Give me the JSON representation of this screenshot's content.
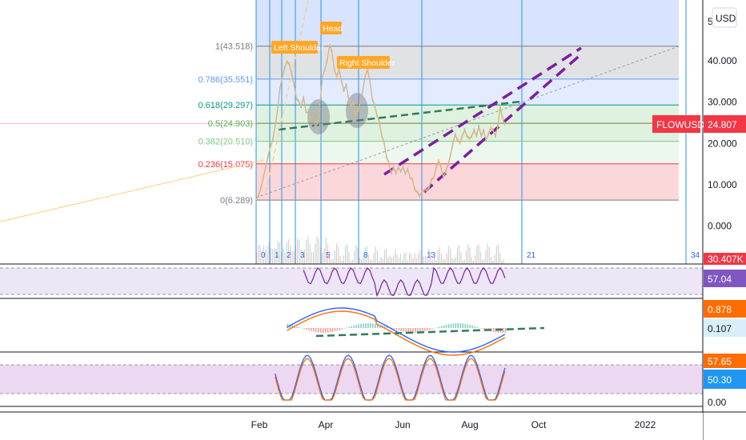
{
  "chart_data": {
    "type": "line",
    "symbol": "FLOWUSD",
    "currency": "USD",
    "last_price": "24.807",
    "volume_label": "30.407K",
    "price_axis": {
      "ticks": [
        "40.000",
        "30.000",
        "20.000",
        "10.000",
        "0.000"
      ],
      "ylim": [
        -5,
        50
      ],
      "partial_top_tick": "5"
    },
    "time_axis": {
      "labels": [
        "Feb",
        "Apr",
        "Jun",
        "Aug",
        "Oct",
        "2022"
      ]
    },
    "fib_levels": [
      {
        "label": "1(43.518)",
        "value": 43.518,
        "color": "#787b86"
      },
      {
        "label": "0.786(35.551)",
        "value": 35.551,
        "color": "#5b9cf6"
      },
      {
        "label": "0.618(29.297)",
        "value": 29.297,
        "color": "#089981"
      },
      {
        "label": "0.5(24.903)",
        "value": 24.903,
        "color": "#4caf50"
      },
      {
        "label": "0.382(20.510)",
        "value": 20.51,
        "color": "#81c784"
      },
      {
        "label": "0.236(15.075)",
        "value": 15.075,
        "color": "#f23645"
      },
      {
        "label": "0(6.289)",
        "value": 6.289,
        "color": "#787b86"
      }
    ],
    "fib_time_zone_labels": [
      "0",
      "1",
      "2",
      "3",
      "5",
      "8",
      "13",
      "21",
      "34"
    ],
    "annotations": [
      "Left Shoulder",
      "Head",
      "Right Shoulder"
    ],
    "price_series": [
      {
        "d": 0,
        "v": 6.3
      },
      {
        "d": 2,
        "v": 7.5
      },
      {
        "d": 4,
        "v": 9
      },
      {
        "d": 6,
        "v": 12
      },
      {
        "d": 8,
        "v": 14
      },
      {
        "d": 10,
        "v": 17
      },
      {
        "d": 12,
        "v": 19
      },
      {
        "d": 14,
        "v": 21
      },
      {
        "d": 16,
        "v": 24
      },
      {
        "d": 18,
        "v": 28
      },
      {
        "d": 20,
        "v": 33
      },
      {
        "d": 22,
        "v": 36
      },
      {
        "d": 24,
        "v": 38
      },
      {
        "d": 26,
        "v": 40
      },
      {
        "d": 28,
        "v": 39
      },
      {
        "d": 30,
        "v": 37
      },
      {
        "d": 32,
        "v": 34
      },
      {
        "d": 34,
        "v": 31
      },
      {
        "d": 36,
        "v": 30
      },
      {
        "d": 38,
        "v": 29
      },
      {
        "d": 40,
        "v": 31
      },
      {
        "d": 42,
        "v": 28
      },
      {
        "d": 44,
        "v": 27
      },
      {
        "d": 46,
        "v": 26
      },
      {
        "d": 48,
        "v": 27
      },
      {
        "d": 50,
        "v": 24
      },
      {
        "d": 52,
        "v": 25
      },
      {
        "d": 54,
        "v": 30
      },
      {
        "d": 56,
        "v": 36
      },
      {
        "d": 58,
        "v": 38
      },
      {
        "d": 60,
        "v": 40
      },
      {
        "d": 62,
        "v": 44
      },
      {
        "d": 64,
        "v": 42
      },
      {
        "d": 66,
        "v": 38
      },
      {
        "d": 68,
        "v": 36
      },
      {
        "d": 70,
        "v": 38
      },
      {
        "d": 72,
        "v": 35
      },
      {
        "d": 74,
        "v": 33
      },
      {
        "d": 76,
        "v": 34
      },
      {
        "d": 78,
        "v": 31
      },
      {
        "d": 80,
        "v": 29
      },
      {
        "d": 82,
        "v": 30
      },
      {
        "d": 84,
        "v": 27
      },
      {
        "d": 86,
        "v": 28
      },
      {
        "d": 88,
        "v": 30
      },
      {
        "d": 90,
        "v": 33
      },
      {
        "d": 92,
        "v": 36
      },
      {
        "d": 94,
        "v": 38
      },
      {
        "d": 96,
        "v": 35
      },
      {
        "d": 98,
        "v": 31
      },
      {
        "d": 100,
        "v": 29
      },
      {
        "d": 102,
        "v": 27
      },
      {
        "d": 104,
        "v": 25
      },
      {
        "d": 106,
        "v": 22
      },
      {
        "d": 108,
        "v": 20
      },
      {
        "d": 110,
        "v": 17
      },
      {
        "d": 112,
        "v": 15
      },
      {
        "d": 114,
        "v": 13
      },
      {
        "d": 116,
        "v": 14
      },
      {
        "d": 118,
        "v": 13
      },
      {
        "d": 120,
        "v": 14
      },
      {
        "d": 122,
        "v": 13.5
      },
      {
        "d": 124,
        "v": 14
      },
      {
        "d": 126,
        "v": 13
      },
      {
        "d": 128,
        "v": 13.5
      },
      {
        "d": 130,
        "v": 12
      },
      {
        "d": 132,
        "v": 11
      },
      {
        "d": 134,
        "v": 9
      },
      {
        "d": 136,
        "v": 8
      },
      {
        "d": 138,
        "v": 7.5
      },
      {
        "d": 140,
        "v": 8
      },
      {
        "d": 142,
        "v": 9
      },
      {
        "d": 144,
        "v": 8.5
      },
      {
        "d": 146,
        "v": 9.5
      },
      {
        "d": 148,
        "v": 11
      },
      {
        "d": 150,
        "v": 12
      },
      {
        "d": 152,
        "v": 14
      },
      {
        "d": 154,
        "v": 16
      },
      {
        "d": 156,
        "v": 14
      },
      {
        "d": 158,
        "v": 12
      },
      {
        "d": 160,
        "v": 13
      },
      {
        "d": 162,
        "v": 15
      },
      {
        "d": 164,
        "v": 17
      },
      {
        "d": 166,
        "v": 20
      },
      {
        "d": 168,
        "v": 22
      },
      {
        "d": 170,
        "v": 21
      },
      {
        "d": 172,
        "v": 20
      },
      {
        "d": 174,
        "v": 22
      },
      {
        "d": 176,
        "v": 23
      },
      {
        "d": 178,
        "v": 22
      },
      {
        "d": 180,
        "v": 21
      },
      {
        "d": 182,
        "v": 22
      },
      {
        "d": 184,
        "v": 23
      },
      {
        "d": 186,
        "v": 22
      },
      {
        "d": 188,
        "v": 24
      },
      {
        "d": 190,
        "v": 22
      },
      {
        "d": 192,
        "v": 23
      },
      {
        "d": 194,
        "v": 21
      },
      {
        "d": 196,
        "v": 22
      },
      {
        "d": 198,
        "v": 24
      },
      {
        "d": 200,
        "v": 23
      },
      {
        "d": 202,
        "v": 22
      },
      {
        "d": 204,
        "v": 24
      },
      {
        "d": 206,
        "v": 29
      },
      {
        "d": 208,
        "v": 26
      },
      {
        "d": 210,
        "v": 24.8
      }
    ],
    "rsi": {
      "value": "57.04",
      "range": [
        0,
        100
      ]
    },
    "macd": {
      "macd_value": "0.878",
      "signal_value": "0.107"
    },
    "stoch": {
      "k_value": "57.65",
      "d_value": "50.30",
      "bottom_tick": "0.00"
    }
  },
  "colors": {
    "red": "#f23645",
    "orange": "#ff6d00",
    "blue": "#2962ff",
    "purple_badge": "#7e57c2",
    "teal": "#089981",
    "ann_yellow": "#ffa726"
  }
}
